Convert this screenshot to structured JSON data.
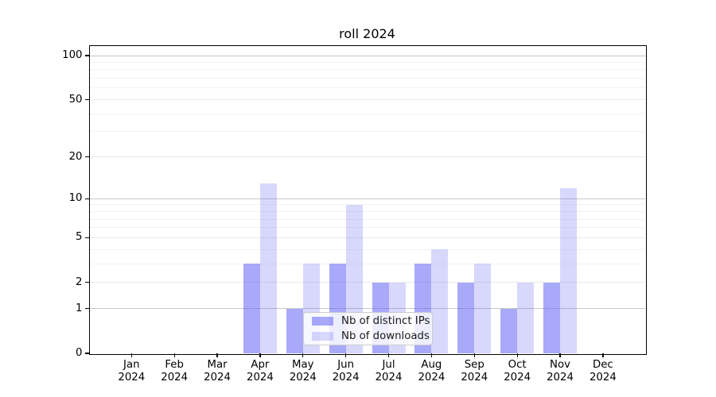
{
  "title": "roll 2024",
  "chart_data": {
    "type": "bar",
    "title": "roll 2024",
    "categories": [
      "Jan 2024",
      "Feb 2024",
      "Mar 2024",
      "Apr 2024",
      "May 2024",
      "Jun 2024",
      "Jul 2024",
      "Aug 2024",
      "Sep 2024",
      "Oct 2024",
      "Nov 2024",
      "Dec 2024"
    ],
    "x_ticks": [
      {
        "month": "Jan",
        "year": "2024"
      },
      {
        "month": "Feb",
        "year": "2024"
      },
      {
        "month": "Mar",
        "year": "2024"
      },
      {
        "month": "Apr",
        "year": "2024"
      },
      {
        "month": "May",
        "year": "2024"
      },
      {
        "month": "Jun",
        "year": "2024"
      },
      {
        "month": "Jul",
        "year": "2024"
      },
      {
        "month": "Aug",
        "year": "2024"
      },
      {
        "month": "Sep",
        "year": "2024"
      },
      {
        "month": "Oct",
        "year": "2024"
      },
      {
        "month": "Nov",
        "year": "2024"
      },
      {
        "month": "Dec",
        "year": "2024"
      }
    ],
    "series": [
      {
        "name": "Nb of distinct IPs",
        "values": [
          0,
          0,
          0,
          3,
          1,
          3,
          2,
          3,
          2,
          1,
          2,
          0
        ],
        "color": "rgba(99,99,245,0.55)"
      },
      {
        "name": "Nb of downloads",
        "values": [
          0,
          0,
          0,
          13,
          3,
          9,
          2,
          4,
          3,
          2,
          12,
          0
        ],
        "color": "rgba(99,99,245,0.25)"
      }
    ],
    "yscale": "log1p",
    "ylim": [
      0,
      100
    ],
    "y_ticks": [
      0,
      1,
      2,
      5,
      10,
      20,
      50,
      100
    ],
    "y_tick_labels": [
      "0",
      "1",
      "2",
      "5",
      "10",
      "20",
      "50",
      "100"
    ],
    "y_minor_ticks": [
      3,
      4,
      6,
      7,
      8,
      9,
      30,
      40,
      60,
      70,
      80,
      90
    ],
    "grid": true,
    "legend_position": "lower center"
  },
  "legend": {
    "items": [
      {
        "label": "Nb of distinct IPs",
        "color": "rgba(99,99,245,0.55)"
      },
      {
        "label": "Nb of downloads",
        "color": "rgba(99,99,245,0.25)"
      }
    ]
  },
  "colors": {
    "bar_dark": "rgba(99,99,245,0.55)",
    "bar_light": "rgba(99,99,245,0.25)",
    "grid_decade": "#c8c8c8",
    "grid_major": "#e9e9e9",
    "grid_minor": "#f3f3f3",
    "spine": "#000000",
    "legend_border": "#cccccc"
  }
}
